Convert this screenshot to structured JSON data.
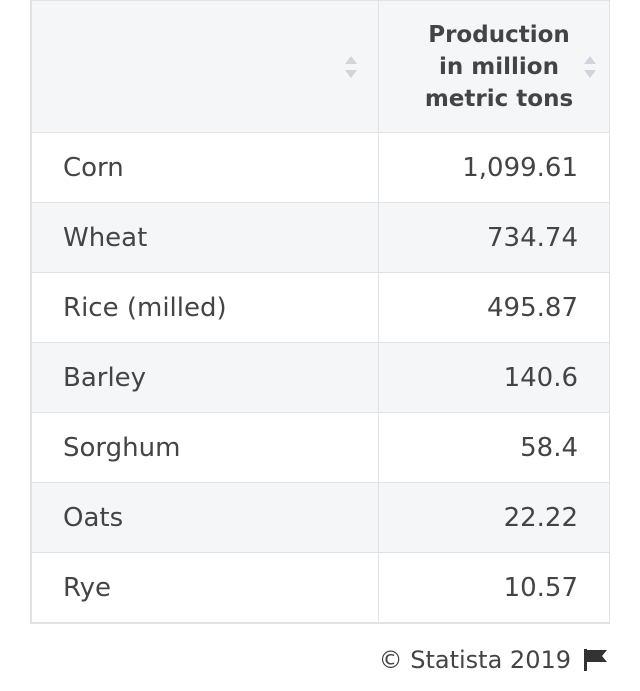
{
  "table": {
    "headers": [
      "",
      "Production\nin million\nmetric tons"
    ],
    "rows": [
      {
        "crop": "Corn",
        "value": "1,099.61"
      },
      {
        "crop": "Wheat",
        "value": "734.74"
      },
      {
        "crop": "Rice (milled)",
        "value": "495.87"
      },
      {
        "crop": "Barley",
        "value": "140.6"
      },
      {
        "crop": "Sorghum",
        "value": "58.4"
      },
      {
        "crop": "Oats",
        "value": "22.22"
      },
      {
        "crop": "Rye",
        "value": "10.57"
      }
    ]
  },
  "chart_data": {
    "type": "table",
    "columns": [
      "",
      "Production in million metric tons"
    ],
    "categories": [
      "Corn",
      "Wheat",
      "Rice (milled)",
      "Barley",
      "Sorghum",
      "Oats",
      "Rye"
    ],
    "values": [
      1099.61,
      734.74,
      495.87,
      140.6,
      58.4,
      22.22,
      10.57
    ]
  },
  "footer": {
    "credit": "© Statista 2019",
    "flag_icon": "flag-icon"
  },
  "colors": {
    "header_bg": "#f4f6f8",
    "row_alt_bg": "#f4f6f8",
    "border": "#dfe3e6",
    "text": "#444444"
  }
}
